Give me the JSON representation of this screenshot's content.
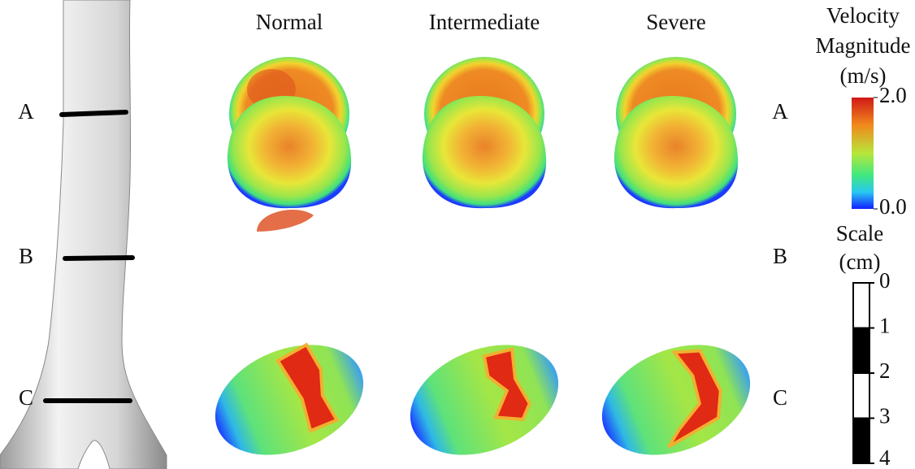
{
  "columns": [
    "Normal",
    "Intermediate",
    "Severe"
  ],
  "rows_left": [
    "A",
    "B",
    "C"
  ],
  "rows_right": [
    "A",
    "B",
    "C"
  ],
  "colorbar": {
    "title": [
      "Velocity",
      "Magnitude",
      "(m/s)"
    ],
    "ticks": [
      {
        "value": 2,
        "label": "2.0"
      },
      {
        "value": 0,
        "label": "0.0"
      }
    ]
  },
  "scale": {
    "title": [
      "Scale",
      "(cm)"
    ],
    "ticks": [
      0,
      1,
      2,
      3,
      4
    ]
  }
}
